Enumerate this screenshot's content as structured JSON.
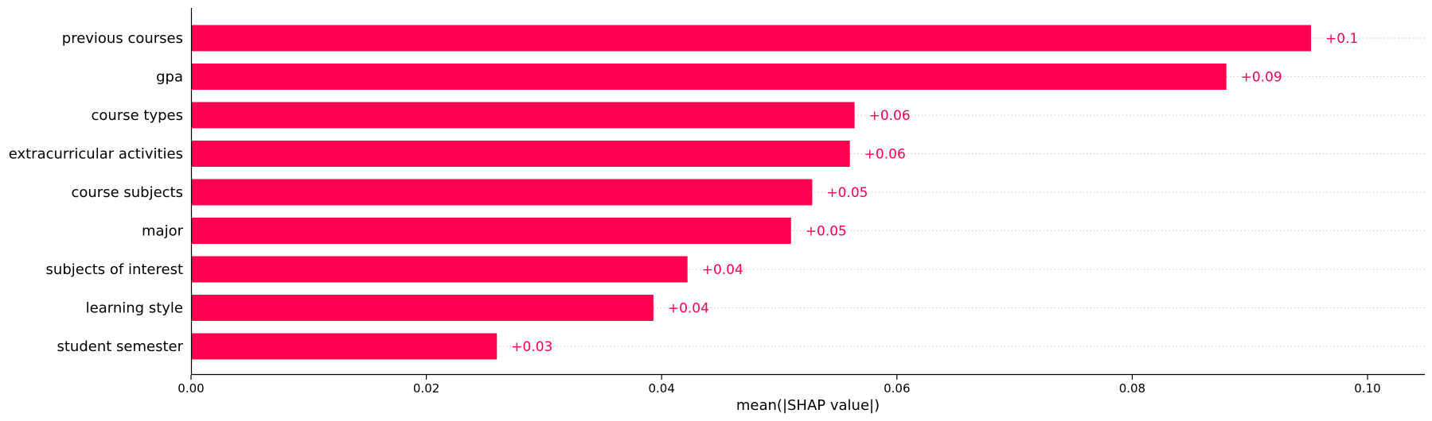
{
  "chart_data": {
    "type": "bar",
    "orientation": "horizontal",
    "categories": [
      "previous courses",
      "gpa",
      "course types",
      "extracurricular activities",
      "course subjects",
      "major",
      "subjects of interest",
      "learning style",
      "student semester"
    ],
    "values": [
      0.0952,
      0.088,
      0.0564,
      0.056,
      0.0528,
      0.051,
      0.0422,
      0.0393,
      0.026
    ],
    "value_labels": [
      "+0.1",
      "+0.09",
      "+0.06",
      "+0.06",
      "+0.05",
      "+0.05",
      "+0.04",
      "+0.04",
      "+0.03"
    ],
    "xlabel": "mean(|SHAP value|)",
    "xlim": [
      0.0,
      0.105
    ],
    "xticks": [
      0.0,
      0.02,
      0.04,
      0.06,
      0.08,
      0.1
    ],
    "xtick_labels": [
      "0.00",
      "0.02",
      "0.04",
      "0.06",
      "0.08",
      "0.10"
    ],
    "grid": "dotted horizontal guides per bar",
    "legend": "none",
    "colors": {
      "bar": "#ff0051",
      "value_text": "#ff0051",
      "axis": "#000000",
      "guide": "#cccccc"
    }
  }
}
